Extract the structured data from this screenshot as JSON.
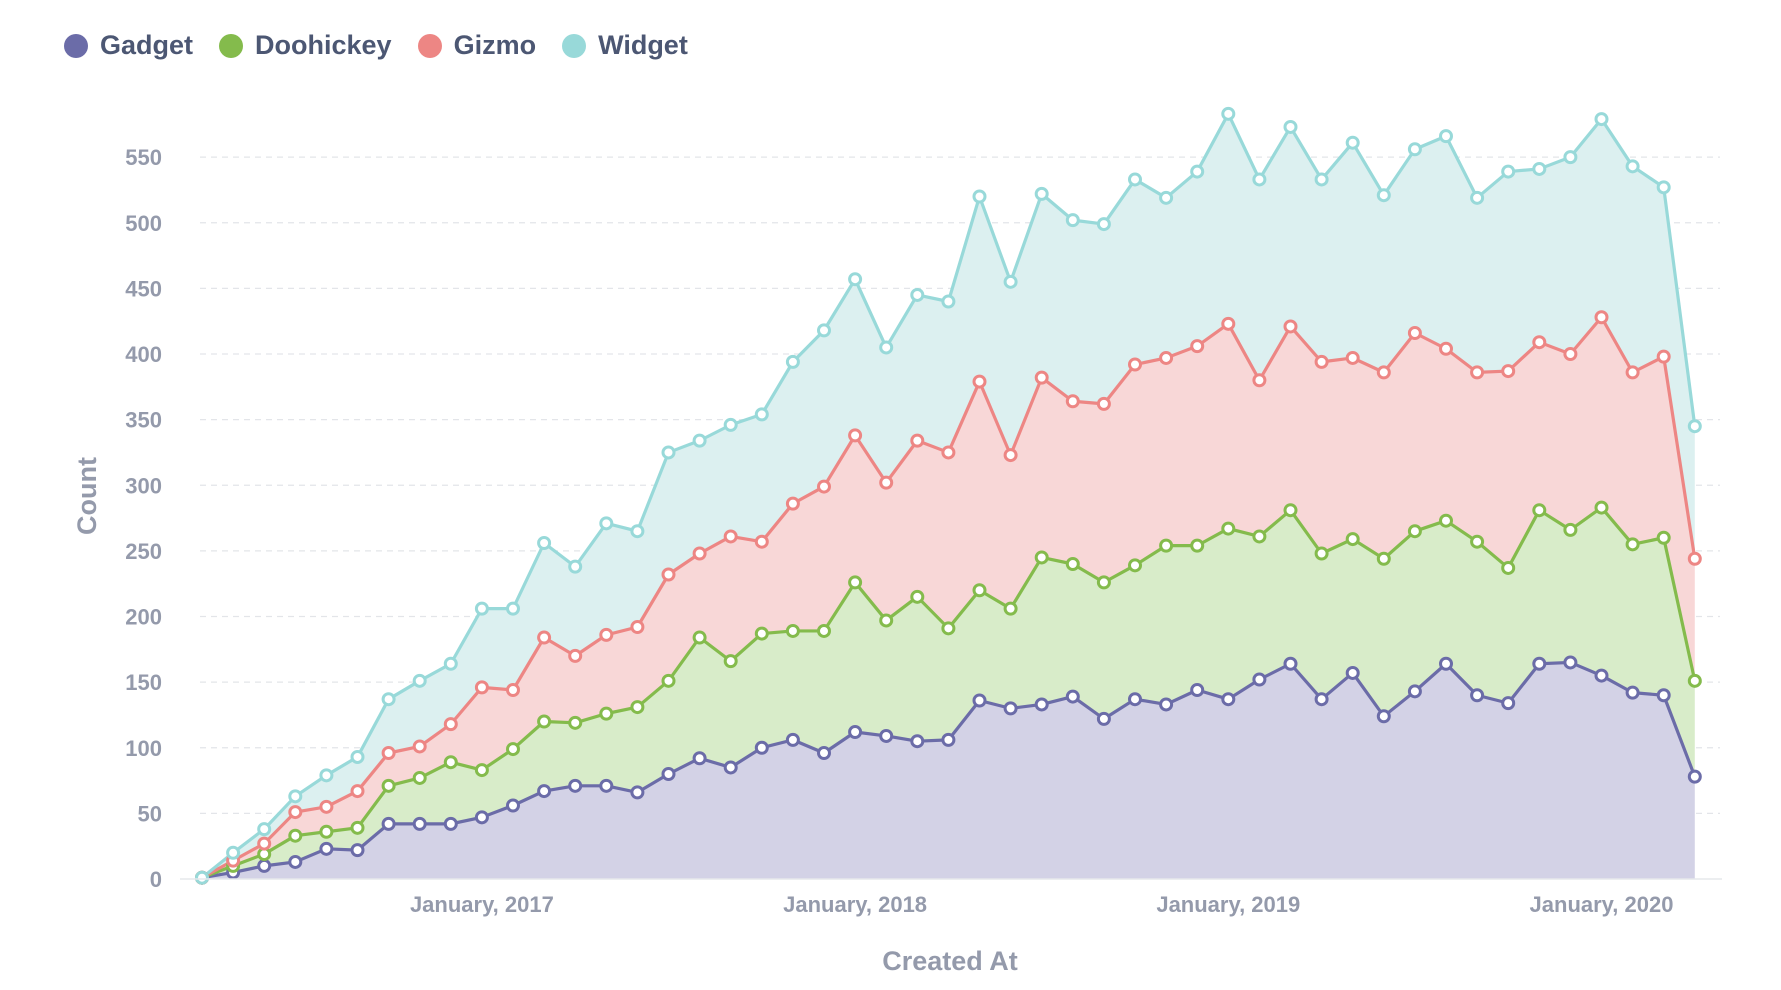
{
  "legend": [
    {
      "name": "Gadget",
      "color": "#6b6ca8"
    },
    {
      "name": "Doohickey",
      "color": "#84bb4c"
    },
    {
      "name": "Gizmo",
      "color": "#ed8684"
    },
    {
      "name": "Widget",
      "color": "#98d9d9"
    }
  ],
  "chart_data": {
    "type": "area",
    "stacked": true,
    "xlabel": "Created At",
    "ylabel": "Count",
    "ylim": [
      0,
      600
    ],
    "yticks": [
      0,
      50,
      100,
      150,
      200,
      250,
      300,
      350,
      400,
      450,
      500,
      550
    ],
    "xticks": [
      {
        "label": "January, 2017",
        "index": 9
      },
      {
        "label": "January, 2018",
        "index": 21
      },
      {
        "label": "January, 2019",
        "index": 33
      },
      {
        "label": "January, 2020",
        "index": 45
      }
    ],
    "x_start": "April, 2016",
    "point_count": 49,
    "series": [
      {
        "name": "Gadget",
        "color": "#6b6ca8",
        "fill": "#d3d2e6",
        "values": [
          1,
          5,
          10,
          13,
          23,
          22,
          42,
          42,
          42,
          47,
          56,
          67,
          71,
          71,
          66,
          80,
          92,
          85,
          100,
          106,
          96,
          112,
          109,
          105,
          106,
          136,
          130,
          133,
          139,
          122,
          137,
          133,
          144,
          137,
          152,
          164,
          137,
          157,
          124,
          143,
          164,
          140,
          134,
          164,
          165,
          155,
          142,
          140,
          78
        ]
      },
      {
        "name": "Doohickey",
        "color": "#84bb4c",
        "fill": "#d8ecc9",
        "values": [
          1,
          10,
          19,
          33,
          36,
          39,
          71,
          77,
          89,
          83,
          99,
          120,
          119,
          126,
          131,
          151,
          184,
          166,
          187,
          189,
          189,
          226,
          197,
          215,
          191,
          220,
          206,
          245,
          240,
          226,
          239,
          254,
          254,
          267,
          261,
          281,
          248,
          259,
          244,
          265,
          273,
          257,
          237,
          281,
          266,
          283,
          255,
          260,
          151
        ]
      },
      {
        "name": "Gizmo",
        "color": "#ed8684",
        "fill": "#f8d7d7",
        "values": [
          1,
          14,
          27,
          51,
          55,
          67,
          96,
          101,
          118,
          146,
          144,
          184,
          170,
          186,
          192,
          232,
          248,
          261,
          257,
          286,
          299,
          338,
          302,
          334,
          325,
          379,
          323,
          382,
          364,
          362,
          392,
          397,
          406,
          423,
          380,
          421,
          394,
          397,
          386,
          416,
          404,
          386,
          387,
          409,
          400,
          428,
          386,
          398,
          244
        ]
      },
      {
        "name": "Widget",
        "color": "#98d9d9",
        "fill": "#dcf0f0",
        "values": [
          1,
          20,
          38,
          63,
          79,
          93,
          137,
          151,
          164,
          206,
          206,
          256,
          238,
          271,
          265,
          325,
          334,
          346,
          354,
          394,
          418,
          457,
          405,
          445,
          440,
          520,
          455,
          522,
          502,
          499,
          533,
          519,
          539,
          583,
          533,
          573,
          533,
          561,
          521,
          556,
          566,
          519,
          539,
          541,
          550,
          579,
          543,
          527,
          345
        ]
      }
    ]
  }
}
